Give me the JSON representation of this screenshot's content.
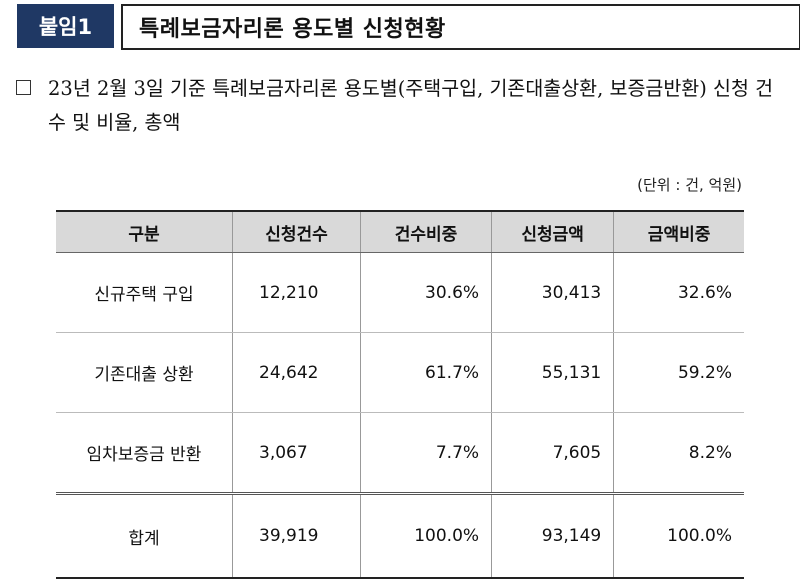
{
  "header": {
    "badge": "붙임1",
    "title": "특례보금자리론 용도별 신청현황"
  },
  "description": "23년 2월 3일 기준 특례보금자리론 용도별(주택구입, 기존대출상환, 보증금반환) 신청 건수 및 비율, 총액",
  "unit_note": "(단위 : 건, 억원)",
  "table": {
    "headers": [
      "구분",
      "신청건수",
      "건수비중",
      "신청금액",
      "금액비중"
    ],
    "rows": [
      {
        "label": "신규주택 구입",
        "count": "12,210",
        "count_share": "30.6%",
        "amount": "30,413",
        "amount_share": "32.6%"
      },
      {
        "label": "기존대출 상환",
        "count": "24,642",
        "count_share": "61.7%",
        "amount": "55,131",
        "amount_share": "59.2%"
      },
      {
        "label": "임차보증금 반환",
        "count": "3,067",
        "count_share": "7.7%",
        "amount": "7,605",
        "amount_share": "8.2%"
      }
    ],
    "total": {
      "label": "합계",
      "count": "39,919",
      "count_share": "100.0%",
      "amount": "93,149",
      "amount_share": "100.0%"
    }
  }
}
